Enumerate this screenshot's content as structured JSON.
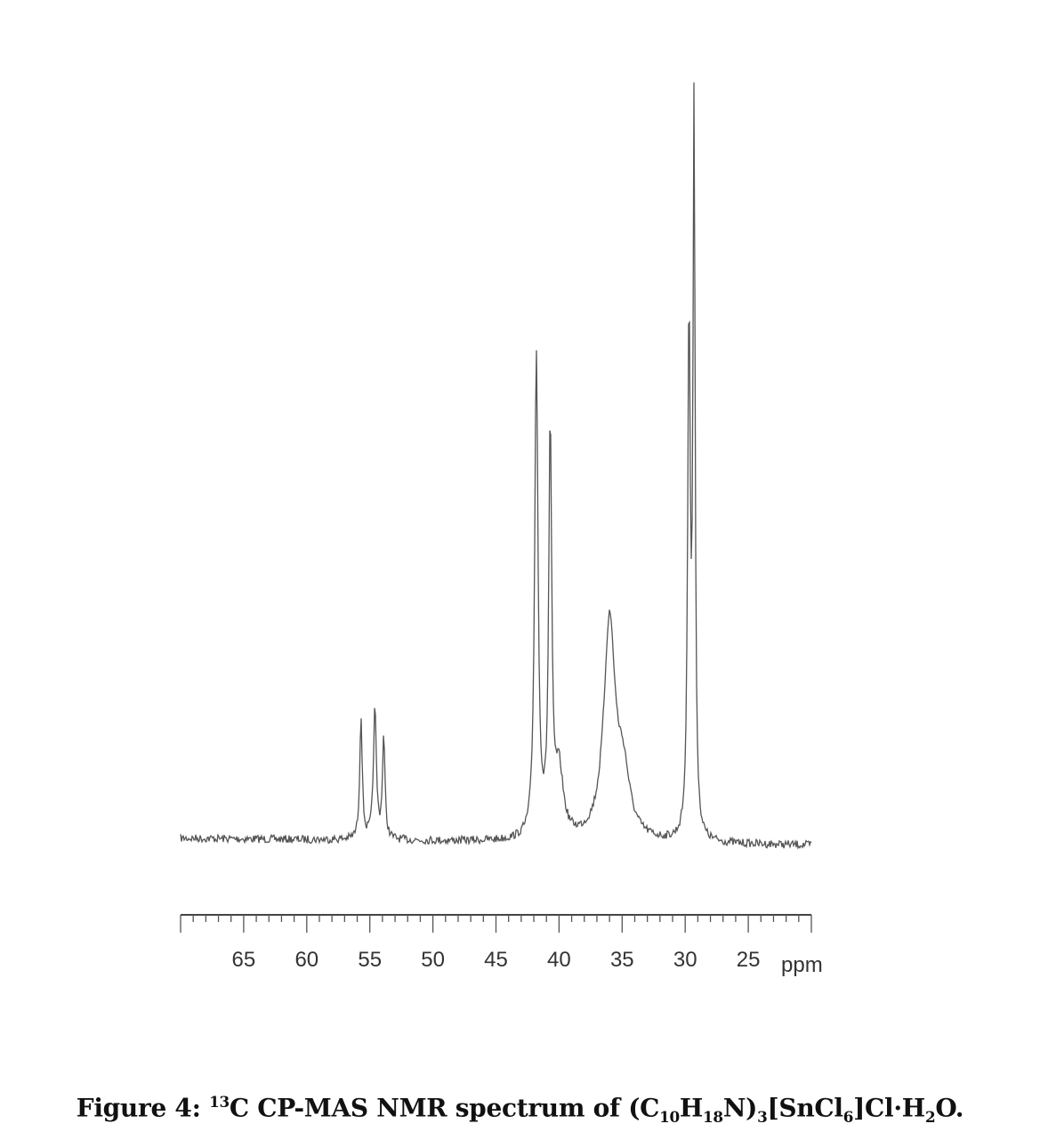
{
  "chart_data": {
    "type": "line",
    "title": "",
    "xlabel": "ppm",
    "ylabel": "",
    "xlim": [
      70,
      20
    ],
    "x_reversed": true,
    "grid": false,
    "legend": "none",
    "line_color": "#555555",
    "x_ticks": [
      65,
      60,
      55,
      50,
      45,
      40,
      35,
      30,
      25
    ],
    "x_tick_labels": [
      "65",
      "60",
      "55",
      "50",
      "45",
      "40",
      "35",
      "30",
      "25"
    ],
    "unit_label": "ppm",
    "peaks": [
      {
        "ppm": 55.7,
        "relative_intensity": 17,
        "width_ppm": 0.12
      },
      {
        "ppm": 54.6,
        "relative_intensity": 18,
        "width_ppm": 0.14
      },
      {
        "ppm": 53.9,
        "relative_intensity": 14,
        "width_ppm": 0.12
      },
      {
        "ppm": 41.8,
        "relative_intensity": 67,
        "width_ppm": 0.16
      },
      {
        "ppm": 40.7,
        "relative_intensity": 56,
        "width_ppm": 0.14
      },
      {
        "ppm": 40.0,
        "relative_intensity": 9,
        "width_ppm": 0.4
      },
      {
        "ppm": 36.0,
        "relative_intensity": 30,
        "width_ppm": 0.55
      },
      {
        "ppm": 34.9,
        "relative_intensity": 8,
        "width_ppm": 0.6
      },
      {
        "ppm": 29.7,
        "relative_intensity": 72,
        "width_ppm": 0.12
      },
      {
        "ppm": 29.3,
        "relative_intensity": 100,
        "width_ppm": 0.1
      }
    ]
  },
  "caption": {
    "prefix": "Figure 4: ",
    "isotope": "13",
    "text1": "C CP-MAS NMR spectrum of (C",
    "s1": "10",
    "t2": "H",
    "s2": "18",
    "t3": "N)",
    "s3": "3",
    "t4": "[SnCl",
    "s4": "6",
    "t5": "]Cl·H",
    "s5": "2",
    "t6": "O."
  }
}
